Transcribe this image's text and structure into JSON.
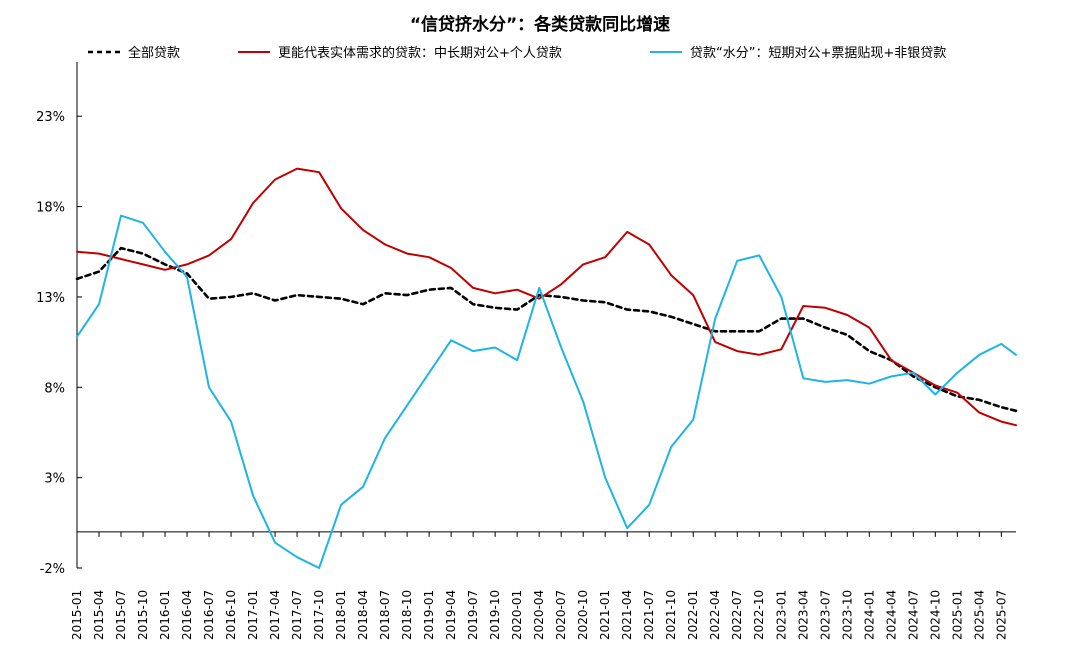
{
  "chart_data": {
    "type": "line",
    "title": "“信贷挤水分”：各类贷款同比增速",
    "xlabel": "",
    "ylabel": "",
    "ylim": [
      -2,
      26
    ],
    "yticks": [
      -2,
      3,
      8,
      13,
      18,
      23
    ],
    "ytick_labels": [
      "-2%",
      "3%",
      "8%",
      "13%",
      "18%",
      "23%"
    ],
    "x": [
      "2015-01",
      "2015-04",
      "2015-07",
      "2015-10",
      "2016-01",
      "2016-04",
      "2016-07",
      "2016-10",
      "2017-01",
      "2017-04",
      "2017-07",
      "2017-10",
      "2018-01",
      "2018-04",
      "2018-07",
      "2018-10",
      "2019-01",
      "2019-04",
      "2019-07",
      "2019-10",
      "2020-01",
      "2020-04",
      "2020-07",
      "2020-10",
      "2021-01",
      "2021-04",
      "2021-07",
      "2021-10",
      "2022-01",
      "2022-04",
      "2022-07",
      "2022-10",
      "2023-01",
      "2023-04",
      "2023-07",
      "2023-10",
      "2024-01",
      "2024-04",
      "2024-07",
      "2024-10",
      "2025-01",
      "2025-04",
      "2025-07",
      "2025-09"
    ],
    "xtick_labels": [
      "2015-01",
      "2015-04",
      "2015-07",
      "2015-10",
      "2016-01",
      "2016-04",
      "2016-07",
      "2016-10",
      "2017-01",
      "2017-04",
      "2017-07",
      "2017-10",
      "2018-01",
      "2018-04",
      "2018-07",
      "2018-10",
      "2019-01",
      "2019-04",
      "2019-07",
      "2019-10",
      "2020-01",
      "2020-04",
      "2020-07",
      "2020-10",
      "2021-01",
      "2021-04",
      "2021-07",
      "2021-10",
      "2022-01",
      "2022-04",
      "2022-07",
      "2022-10",
      "2023-01",
      "2023-04",
      "2023-07",
      "2023-10",
      "2024-01",
      "2024-04",
      "2024-07",
      "2024-10",
      "2025-01",
      "2025-04",
      "2025-07"
    ],
    "legend_position": "top",
    "grid": false,
    "series": [
      {
        "name": "全部贷款",
        "color": "#000000",
        "style": "dashed",
        "values": [
          14.0,
          14.4,
          15.7,
          15.4,
          14.8,
          14.3,
          12.9,
          13.0,
          13.2,
          12.8,
          13.1,
          13.0,
          12.9,
          12.6,
          13.2,
          13.1,
          13.4,
          13.5,
          12.6,
          12.4,
          12.3,
          13.1,
          13.0,
          12.8,
          12.7,
          12.3,
          12.2,
          11.9,
          11.5,
          11.1,
          11.1,
          11.1,
          11.8,
          11.8,
          11.3,
          10.9,
          10.0,
          9.5,
          8.6,
          8.0,
          7.5,
          7.3,
          6.9,
          6.7
        ]
      },
      {
        "name": "更能代表实体需求的贷款：中长期对公+个人贷款",
        "color": "#C00000",
        "style": "solid",
        "values": [
          15.5,
          15.4,
          15.1,
          14.8,
          14.5,
          14.8,
          15.3,
          16.2,
          18.2,
          19.5,
          20.1,
          19.9,
          17.9,
          16.7,
          15.9,
          15.4,
          15.2,
          14.6,
          13.5,
          13.2,
          13.4,
          12.9,
          13.7,
          14.8,
          15.2,
          16.6,
          15.9,
          14.2,
          13.1,
          10.5,
          10.0,
          9.8,
          10.1,
          12.5,
          12.4,
          12.0,
          11.3,
          9.5,
          8.8,
          8.1,
          7.7,
          6.6,
          6.1,
          5.9
        ]
      },
      {
        "name": "贷款“水分”：短期对公+票据贴现+非银贷款",
        "color": "#1EB4E6",
        "style": "solid",
        "values": [
          10.8,
          12.6,
          17.5,
          17.1,
          15.5,
          14.1,
          8.0,
          6.1,
          2.0,
          -0.6,
          -1.4,
          -2.0,
          1.5,
          2.5,
          5.2,
          7.0,
          8.8,
          10.6,
          10.0,
          10.2,
          9.5,
          13.5,
          10.2,
          7.2,
          3.0,
          0.2,
          1.5,
          4.7,
          6.2,
          11.8,
          15.0,
          15.3,
          13.0,
          8.5,
          8.3,
          8.4,
          8.2,
          8.6,
          8.8,
          7.6,
          8.8,
          9.8,
          10.4,
          9.8
        ]
      }
    ]
  }
}
